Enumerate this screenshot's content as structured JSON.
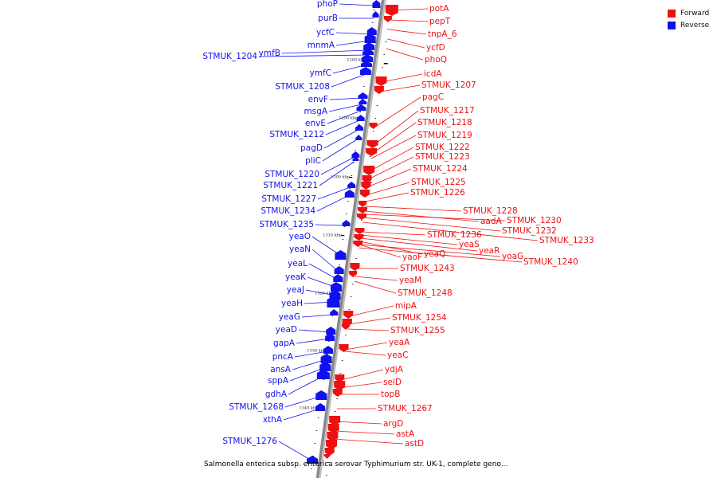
{
  "caption": "Salmonella enterica subsp. enterica serovar Typhimurium str. UK-1, complete geno...",
  "legend": [
    {
      "label": "Forward",
      "color": "#ee1111"
    },
    {
      "label": "Reverse",
      "color": "#1111ee"
    }
  ],
  "colors": {
    "forward": "#ee1111",
    "reverse": "#1111ee",
    "backbone": "#888888"
  },
  "ticks": [
    "1280 kbp",
    "1290 kbp",
    "1300 kbp",
    "1310 kbp",
    "1320 kbp",
    "1330 kbp",
    "1340 kbp"
  ],
  "reverse_genes": [
    "phoP",
    "purB",
    "ycfC",
    "mnmA",
    "ymfB",
    "STMUK_1204",
    "ymfC",
    "STMUK_1208",
    "envF",
    "msgA",
    "envE",
    "STMUK_1212",
    "pagD",
    "pliC",
    "STMUK_1220",
    "STMUK_1221",
    "STMUK_1227",
    "STMUK_1234",
    "STMUK_1235",
    "yeaO",
    "yeaN",
    "yeaL",
    "yeaK",
    "yeaJ",
    "yeaH",
    "yeaG",
    "yeaD",
    "gapA",
    "pncA",
    "ansA",
    "sppA",
    "gdhA",
    "STMUK_1268",
    "xthA",
    "STMUK_1276"
  ],
  "forward_genes": [
    "potA",
    "pepT",
    "tnpA_6",
    "ycfD",
    "phoQ",
    "icdA",
    "STMUK_1207",
    "pagC",
    "STMUK_1217",
    "STMUK_1218",
    "STMUK_1219",
    "STMUK_1222",
    "STMUK_1223",
    "STMUK_1224",
    "STMUK_1225",
    "STMUK_1226",
    "STMUK_1228",
    "aadA",
    "STMUK_1230",
    "STMUK_1232",
    "STMUK_1233",
    "STMUK_1236",
    "yeaS",
    "yeaR",
    "yeaQ",
    "yaoF",
    "yoaG",
    "STMUK_1240",
    "STMUK_1243",
    "yeaM",
    "STMUK_1248",
    "mipA",
    "STMUK_1254",
    "STMUK_1255",
    "yeaA",
    "yeaC",
    "ydjA",
    "selD",
    "topB",
    "STMUK_1267",
    "argD",
    "astA",
    "astD"
  ]
}
